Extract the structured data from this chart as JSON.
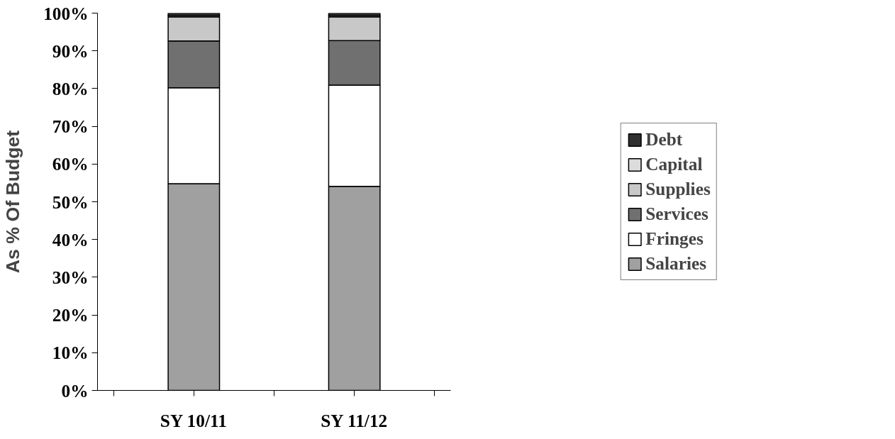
{
  "chart_data": {
    "type": "bar",
    "stacked": true,
    "ylabel": "As % Of Budget",
    "categories": [
      "SY 10/11",
      "SY 11/12"
    ],
    "series": [
      {
        "name": "Salaries",
        "color": "#a0a0a0",
        "values": [
          54.8,
          54.1
        ]
      },
      {
        "name": "Fringes",
        "color": "#ffffff",
        "values": [
          25.4,
          26.8
        ]
      },
      {
        "name": "Services",
        "color": "#707070",
        "values": [
          12.4,
          11.8
        ]
      },
      {
        "name": "Supplies",
        "color": "#c8c8c8",
        "values": [
          6.4,
          6.3
        ]
      },
      {
        "name": "Capital",
        "color": "#dcdcdc",
        "values": [
          0.4,
          0.4
        ]
      },
      {
        "name": "Debt",
        "color": "#303030",
        "values": [
          0.6,
          0.6
        ]
      }
    ],
    "ylim": [
      0,
      100
    ],
    "yticks": [
      {
        "value": 0,
        "label": "0%"
      },
      {
        "value": 10,
        "label": "10%"
      },
      {
        "value": 20,
        "label": "20%"
      },
      {
        "value": 30,
        "label": "30%"
      },
      {
        "value": 40,
        "label": "40%"
      },
      {
        "value": 50,
        "label": "50%"
      },
      {
        "value": 60,
        "label": "60%"
      },
      {
        "value": 70,
        "label": "70%"
      },
      {
        "value": 80,
        "label": "80%"
      },
      {
        "value": 90,
        "label": "90%"
      },
      {
        "value": 100,
        "label": "100%"
      }
    ],
    "grid": false,
    "legend": "right"
  }
}
